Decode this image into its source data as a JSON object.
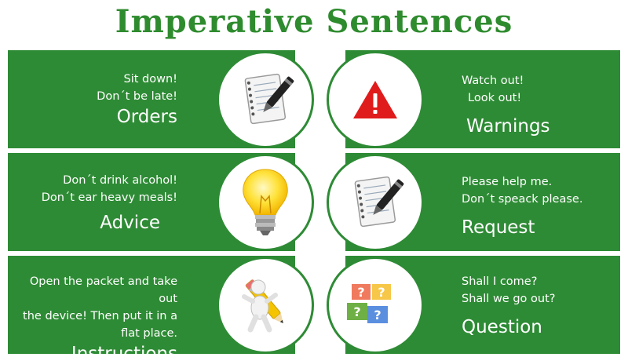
{
  "title": "Imperative Sentences",
  "panels": {
    "orders": {
      "heading": "Orders",
      "line1": "Sit down!",
      "line2": "Don´t be late!",
      "line3": "",
      "icon": "notepad-pen-icon"
    },
    "warnings": {
      "heading": "Warnings",
      "line1": "Watch out!",
      "line2": "Look out!",
      "line3": "",
      "icon": "warning-triangle-icon"
    },
    "advice": {
      "heading": "Advice",
      "line1": "Don´t drink alcohol!",
      "line2": "Don´t ear heavy meals!",
      "line3": "",
      "icon": "lightbulb-icon"
    },
    "request": {
      "heading": "Request",
      "line1": "Please help me.",
      "line2": "Don´t speack please.",
      "line3": "",
      "icon": "notepad-pen-icon"
    },
    "instructions": {
      "heading": "Instructions",
      "line1": "Open the packet and take out",
      "line2": "the device! Then put it in a",
      "line3": "flat place.",
      "icon": "figure-with-pencil-icon"
    },
    "question": {
      "heading": "Question",
      "line1": "Shall I come?",
      "line2": "Shall we go out?",
      "line3": "",
      "icon": "question-cards-icon"
    }
  },
  "colors": {
    "green": "#2e8b35",
    "title_green": "#2e8b2e",
    "warning_red": "#e01b1b"
  }
}
